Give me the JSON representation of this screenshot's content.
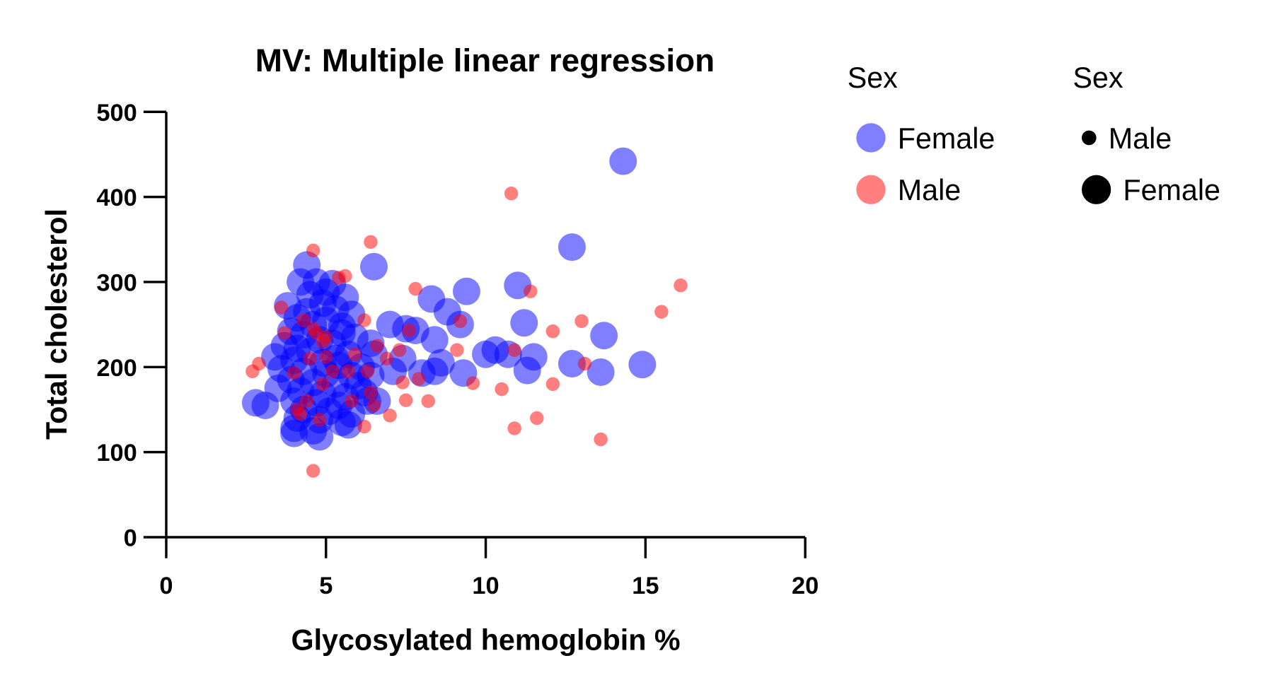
{
  "chart_data": {
    "type": "scatter",
    "title": "MV: Multiple linear regression",
    "xlabel": "Glycosylated hemoglobin %",
    "ylabel": "Total cholesterol",
    "xlim": [
      0,
      20
    ],
    "ylim": [
      0,
      500
    ],
    "xticks": [
      "0",
      "5",
      "10",
      "15",
      "20"
    ],
    "yticks": [
      "0",
      "100",
      "200",
      "300",
      "400",
      "500"
    ],
    "grid": false,
    "legend_placement": "right",
    "legends": [
      {
        "title": "Sex",
        "kind": "color",
        "entries": [
          {
            "label": "Female",
            "color": "#0000ff"
          },
          {
            "label": "Male",
            "color": "#ff0000"
          }
        ]
      },
      {
        "title": "Sex",
        "kind": "size",
        "entries": [
          {
            "label": "Male",
            "size": "small"
          },
          {
            "label": "Female",
            "size": "large"
          }
        ]
      }
    ],
    "series": [
      {
        "name": "Female",
        "color": "#0000ff",
        "opacity": 0.5,
        "size": "large",
        "points": [
          [
            14.3,
            442
          ],
          [
            12.7,
            341
          ],
          [
            6.5,
            318
          ],
          [
            11.0,
            296
          ],
          [
            9.4,
            289
          ],
          [
            8.3,
            280
          ],
          [
            8.8,
            265
          ],
          [
            11.2,
            252
          ],
          [
            13.7,
            237
          ],
          [
            9.2,
            250
          ],
          [
            7.0,
            250
          ],
          [
            7.5,
            245
          ],
          [
            7.8,
            243
          ],
          [
            8.4,
            232
          ],
          [
            7.4,
            210
          ],
          [
            8.6,
            205
          ],
          [
            7.1,
            195
          ],
          [
            8.0,
            193
          ],
          [
            8.4,
            195
          ],
          [
            9.3,
            193
          ],
          [
            10.0,
            215
          ],
          [
            10.3,
            220
          ],
          [
            10.7,
            215
          ],
          [
            11.5,
            212
          ],
          [
            11.3,
            196
          ],
          [
            12.7,
            204
          ],
          [
            13.6,
            194
          ],
          [
            14.9,
            203
          ],
          [
            2.8,
            158
          ],
          [
            3.1,
            155
          ],
          [
            6.3,
            160
          ],
          [
            6.5,
            215
          ],
          [
            6.4,
            228
          ],
          [
            4.4,
            320
          ],
          [
            4.2,
            300
          ],
          [
            4.7,
            300
          ],
          [
            5.2,
            298
          ],
          [
            4.5,
            285
          ],
          [
            5.6,
            282
          ],
          [
            4.9,
            275
          ],
          [
            3.8,
            272
          ],
          [
            5.3,
            268
          ],
          [
            5.8,
            262
          ],
          [
            4.1,
            258
          ],
          [
            5.0,
            255
          ],
          [
            4.6,
            250
          ],
          [
            5.5,
            248
          ],
          [
            3.9,
            242
          ],
          [
            4.3,
            238
          ],
          [
            5.9,
            235
          ],
          [
            4.8,
            232
          ],
          [
            5.2,
            228
          ],
          [
            3.7,
            225
          ],
          [
            4.1,
            222
          ],
          [
            4.5,
            218
          ],
          [
            5.7,
            215
          ],
          [
            3.4,
            212
          ],
          [
            4.0,
            208
          ],
          [
            4.9,
            205
          ],
          [
            5.4,
            202
          ],
          [
            6.1,
            200
          ],
          [
            3.6,
            198
          ],
          [
            4.3,
            195
          ],
          [
            5.0,
            192
          ],
          [
            5.8,
            190
          ],
          [
            3.9,
            185
          ],
          [
            4.6,
            182
          ],
          [
            5.3,
            180
          ],
          [
            6.0,
            178
          ],
          [
            3.5,
            175
          ],
          [
            4.2,
            172
          ],
          [
            4.9,
            168
          ],
          [
            5.6,
            165
          ],
          [
            4.0,
            160
          ],
          [
            4.7,
            158
          ],
          [
            5.4,
            155
          ],
          [
            6.2,
            170
          ],
          [
            4.3,
            150
          ],
          [
            5.1,
            148
          ],
          [
            5.8,
            145
          ],
          [
            4.1,
            140
          ],
          [
            4.8,
            138
          ],
          [
            5.5,
            135
          ],
          [
            4.0,
            128
          ],
          [
            4.6,
            125
          ],
          [
            4.0,
            122
          ],
          [
            4.8,
            118
          ],
          [
            5.7,
            132
          ],
          [
            5.3,
            210
          ],
          [
            4.4,
            265
          ],
          [
            5.0,
            288
          ],
          [
            5.5,
            240
          ],
          [
            6.4,
            190
          ],
          [
            6.6,
            160
          ]
        ]
      },
      {
        "name": "Male",
        "color": "#ff0000",
        "opacity": 0.5,
        "size": "small",
        "points": [
          [
            4.6,
            337
          ],
          [
            6.4,
            347
          ],
          [
            10.8,
            404
          ],
          [
            16.1,
            296
          ],
          [
            15.5,
            265
          ],
          [
            13.0,
            254
          ],
          [
            12.1,
            242
          ],
          [
            11.4,
            289
          ],
          [
            7.8,
            292
          ],
          [
            9.2,
            254
          ],
          [
            9.1,
            220
          ],
          [
            10.9,
            220
          ],
          [
            13.1,
            204
          ],
          [
            12.1,
            180
          ],
          [
            10.5,
            174
          ],
          [
            9.6,
            181
          ],
          [
            7.5,
            161
          ],
          [
            8.2,
            160
          ],
          [
            7.0,
            143
          ],
          [
            6.2,
            130
          ],
          [
            10.9,
            128
          ],
          [
            11.6,
            140
          ],
          [
            13.6,
            115
          ],
          [
            4.6,
            78
          ],
          [
            2.7,
            195
          ],
          [
            2.9,
            204
          ],
          [
            3.6,
            270
          ],
          [
            7.6,
            243
          ],
          [
            7.3,
            220
          ],
          [
            7.4,
            182
          ],
          [
            7.9,
            186
          ],
          [
            4.3,
            255
          ],
          [
            4.6,
            245
          ],
          [
            4.9,
            230
          ],
          [
            5.0,
            212
          ],
          [
            4.7,
            240
          ],
          [
            5.4,
            305
          ],
          [
            5.6,
            307
          ],
          [
            4.0,
            193
          ],
          [
            4.2,
            145
          ],
          [
            4.4,
            160
          ],
          [
            4.9,
            180
          ],
          [
            5.9,
            215
          ],
          [
            6.2,
            255
          ],
          [
            6.3,
            195
          ],
          [
            6.4,
            170
          ],
          [
            6.5,
            155
          ],
          [
            5.2,
            195
          ],
          [
            4.5,
            210
          ],
          [
            3.7,
            240
          ],
          [
            5.7,
            195
          ],
          [
            4.1,
            150
          ],
          [
            5.8,
            160
          ],
          [
            6.6,
            225
          ],
          [
            5.0,
            235
          ],
          [
            4.8,
            138
          ],
          [
            6.9,
            210
          ]
        ]
      }
    ]
  }
}
